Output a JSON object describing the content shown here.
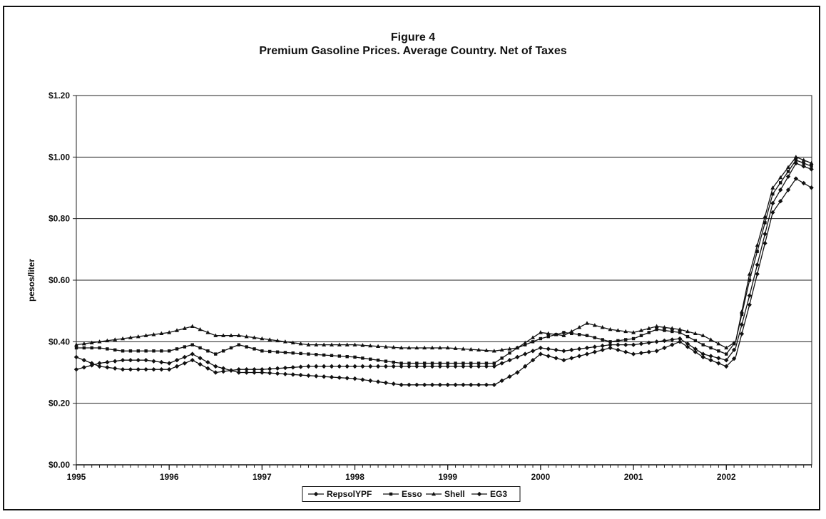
{
  "chart_data": {
    "type": "line",
    "title": "Figure 4",
    "subtitle": "Premium Gasoline Prices. Average Country. Net of Taxes",
    "xlabel": "",
    "ylabel": "pesos/liter",
    "x_tick_labels": [
      "1995",
      "1996",
      "1997",
      "1998",
      "1999",
      "2000",
      "2001",
      "2002"
    ],
    "x_tick_values": [
      1995,
      1996,
      1997,
      1998,
      1999,
      2000,
      2001,
      2002
    ],
    "xlim": [
      1995,
      2002.92
    ],
    "y_tick_labels": [
      "$0.00",
      "$0.20",
      "$0.40",
      "$0.60",
      "$0.80",
      "$1.00",
      "$1.20"
    ],
    "y_tick_values": [
      0,
      0.2,
      0.4,
      0.6,
      0.8,
      1.0,
      1.2
    ],
    "ylim": [
      0,
      1.2
    ],
    "grid": "horizontal",
    "legend_position": "bottom",
    "series": [
      {
        "name": "RepsolYPF",
        "x": [
          1995,
          1995.25,
          1995.5,
          1995.75,
          1996,
          1996.25,
          1996.5,
          1996.75,
          1997,
          1997.5,
          1998,
          1998.5,
          1999,
          1999.5,
          1999.75,
          2000,
          2000.25,
          2000.5,
          2000.75,
          2001,
          2001.25,
          2001.5,
          2001.75,
          2002,
          2002.1,
          2002.25,
          2002.5,
          2002.75,
          2002.92
        ],
        "y": [
          0.35,
          0.32,
          0.31,
          0.31,
          0.31,
          0.34,
          0.3,
          0.31,
          0.31,
          0.32,
          0.32,
          0.32,
          0.32,
          0.32,
          0.35,
          0.38,
          0.37,
          0.38,
          0.39,
          0.39,
          0.4,
          0.41,
          0.36,
          0.34,
          0.38,
          0.55,
          0.85,
          0.98,
          0.96
        ]
      },
      {
        "name": "Esso",
        "x": [
          1995,
          1995.25,
          1995.5,
          1995.75,
          1996,
          1996.25,
          1996.5,
          1996.75,
          1997,
          1997.5,
          1998,
          1998.5,
          1999,
          1999.5,
          1999.75,
          2000,
          2000.25,
          2000.5,
          2000.75,
          2001,
          2001.25,
          2001.5,
          2001.75,
          2002,
          2002.1,
          2002.25,
          2002.5,
          2002.75,
          2002.92
        ],
        "y": [
          0.38,
          0.38,
          0.37,
          0.37,
          0.37,
          0.39,
          0.36,
          0.39,
          0.37,
          0.36,
          0.35,
          0.33,
          0.33,
          0.33,
          0.38,
          0.41,
          0.43,
          0.42,
          0.4,
          0.41,
          0.44,
          0.43,
          0.39,
          0.36,
          0.4,
          0.6,
          0.88,
          0.99,
          0.97
        ]
      },
      {
        "name": "Shell",
        "x": [
          1995,
          1995.25,
          1995.5,
          1995.75,
          1996,
          1996.25,
          1996.5,
          1996.75,
          1997,
          1997.5,
          1998,
          1998.5,
          1999,
          1999.5,
          1999.75,
          2000,
          2000.25,
          2000.5,
          2000.75,
          2001,
          2001.25,
          2001.5,
          2001.75,
          2002,
          2002.1,
          2002.25,
          2002.5,
          2002.75,
          2002.92
        ],
        "y": [
          0.39,
          0.4,
          0.41,
          0.42,
          0.43,
          0.45,
          0.42,
          0.42,
          0.41,
          0.39,
          0.39,
          0.38,
          0.38,
          0.37,
          0.38,
          0.43,
          0.42,
          0.46,
          0.44,
          0.43,
          0.45,
          0.44,
          0.42,
          0.38,
          0.4,
          0.62,
          0.9,
          1.0,
          0.98
        ]
      },
      {
        "name": "EG3",
        "x": [
          1995,
          1995.25,
          1995.5,
          1995.75,
          1996,
          1996.25,
          1996.5,
          1996.75,
          1997,
          1997.5,
          1998,
          1998.5,
          1999,
          1999.5,
          1999.75,
          2000,
          2000.25,
          2000.5,
          2000.75,
          2001,
          2001.25,
          2001.5,
          2001.75,
          2002,
          2002.1,
          2002.25,
          2002.5,
          2002.75,
          2002.92
        ],
        "y": [
          0.31,
          0.33,
          0.34,
          0.34,
          0.33,
          0.36,
          0.32,
          0.3,
          0.3,
          0.29,
          0.28,
          0.26,
          0.26,
          0.26,
          0.3,
          0.36,
          0.34,
          0.36,
          0.38,
          0.36,
          0.37,
          0.4,
          0.35,
          0.32,
          0.35,
          0.52,
          0.82,
          0.93,
          0.9
        ]
      }
    ]
  }
}
